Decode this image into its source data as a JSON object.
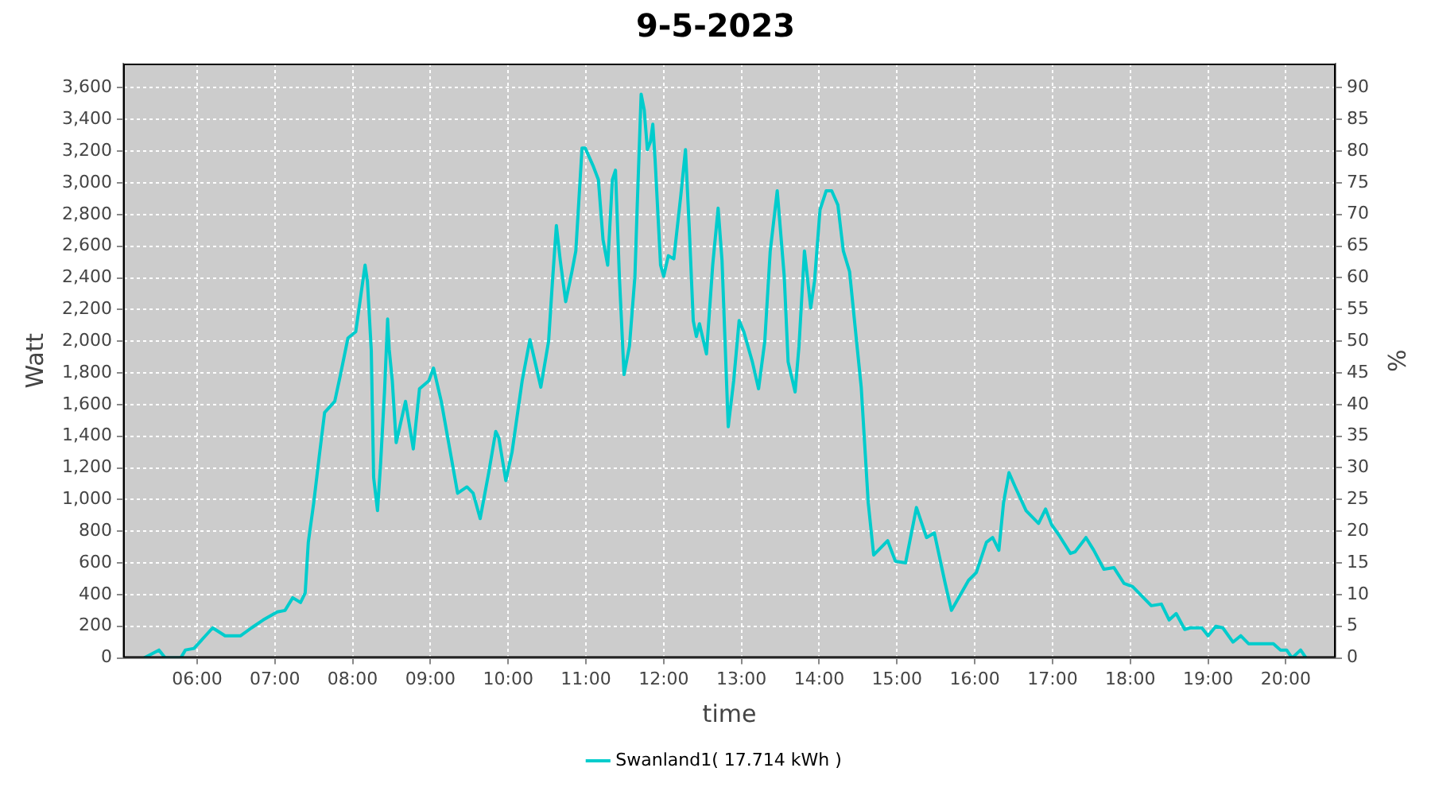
{
  "chart_data": {
    "type": "line",
    "title": "9-5-2023",
    "xlabel": "time",
    "ylabel": "Watt",
    "y2label": "%",
    "series": [
      {
        "name": "Swanland1( 17.714 kWh )",
        "color": "#00cccc",
        "x": [
          5.32,
          5.51,
          5.59,
          5.79,
          5.85,
          5.96,
          6.2,
          6.36,
          6.56,
          6.7,
          6.85,
          7.03,
          7.13,
          7.23,
          7.33,
          7.39,
          7.43,
          7.5,
          7.57,
          7.64,
          7.77,
          7.84,
          7.94,
          8.04,
          8.16,
          8.19,
          8.24,
          8.27,
          8.32,
          8.36,
          8.41,
          8.45,
          8.47,
          8.51,
          8.56,
          8.68,
          8.78,
          8.86,
          8.98,
          9.04,
          9.14,
          9.35,
          9.47,
          9.55,
          9.64,
          9.75,
          9.84,
          9.88,
          9.97,
          10.05,
          10.18,
          10.28,
          10.42,
          10.52,
          10.57,
          10.62,
          10.67,
          10.74,
          10.82,
          10.87,
          10.95,
          10.99,
          11.09,
          11.16,
          11.22,
          11.28,
          11.34,
          11.38,
          11.43,
          11.49,
          11.56,
          11.63,
          11.66,
          11.71,
          11.75,
          11.79,
          11.83,
          11.86,
          11.89,
          11.96,
          12.0,
          12.06,
          12.13,
          12.22,
          12.28,
          12.33,
          12.38,
          12.42,
          12.46,
          12.55,
          12.63,
          12.7,
          12.75,
          12.83,
          12.9,
          12.97,
          13.03,
          13.14,
          13.22,
          13.3,
          13.37,
          13.46,
          13.55,
          13.6,
          13.69,
          13.74,
          13.81,
          13.84,
          13.89,
          13.94,
          14.01,
          14.09,
          14.16,
          14.24,
          14.31,
          14.39,
          14.48,
          14.54,
          14.63,
          14.7,
          14.88,
          14.98,
          15.11,
          15.25,
          15.38,
          15.48,
          15.62,
          15.7,
          15.92,
          16.02,
          16.15,
          16.23,
          16.31,
          16.37,
          16.44,
          16.52,
          16.66,
          16.82,
          16.91,
          16.99,
          17.09,
          17.23,
          17.29,
          17.43,
          17.53,
          17.66,
          17.79,
          17.92,
          18.03,
          18.27,
          18.4,
          18.5,
          18.59,
          18.7,
          18.77,
          18.92,
          19.0,
          19.1,
          19.19,
          19.32,
          19.42,
          19.52,
          19.84,
          19.93,
          20.01,
          20.08,
          20.19,
          20.26
        ],
        "values": [
          0,
          50,
          0,
          0,
          50,
          60,
          190,
          140,
          140,
          190,
          240,
          290,
          300,
          380,
          350,
          410,
          730,
          980,
          1270,
          1550,
          1620,
          1780,
          2020,
          2060,
          2480,
          2380,
          1940,
          1140,
          930,
          1230,
          1680,
          2140,
          1950,
          1750,
          1360,
          1620,
          1320,
          1700,
          1750,
          1830,
          1620,
          1040,
          1080,
          1040,
          880,
          1170,
          1430,
          1390,
          1120,
          1300,
          1750,
          2010,
          1710,
          2000,
          2380,
          2730,
          2510,
          2250,
          2440,
          2570,
          3220,
          3220,
          3110,
          3020,
          2640,
          2480,
          3020,
          3080,
          2410,
          1790,
          1970,
          2410,
          2860,
          3560,
          3460,
          3210,
          3260,
          3370,
          3140,
          2480,
          2410,
          2540,
          2520,
          2920,
          3210,
          2700,
          2130,
          2030,
          2110,
          1920,
          2480,
          2840,
          2510,
          1460,
          1750,
          2130,
          2060,
          1870,
          1700,
          2000,
          2570,
          2950,
          2410,
          1870,
          1680,
          1970,
          2570,
          2440,
          2210,
          2380,
          2830,
          2950,
          2950,
          2860,
          2570,
          2440,
          2000,
          1710,
          980,
          650,
          740,
          610,
          600,
          950,
          760,
          790,
          470,
          300,
          490,
          540,
          730,
          760,
          680,
          980,
          1170,
          1080,
          930,
          850,
          940,
          840,
          770,
          660,
          670,
          760,
          680,
          560,
          570,
          470,
          450,
          330,
          340,
          240,
          280,
          180,
          190,
          190,
          140,
          200,
          190,
          100,
          140,
          90,
          90,
          50,
          50,
          0,
          50,
          0
        ]
      }
    ],
    "xlim": [
      5.05,
      20.64
    ],
    "xticks": [
      {
        "value": 6,
        "label": "06:00"
      },
      {
        "value": 7,
        "label": "07:00"
      },
      {
        "value": 8,
        "label": "08:00"
      },
      {
        "value": 9,
        "label": "09:00"
      },
      {
        "value": 10,
        "label": "10:00"
      },
      {
        "value": 11,
        "label": "11:00"
      },
      {
        "value": 12,
        "label": "12:00"
      },
      {
        "value": 13,
        "label": "13:00"
      },
      {
        "value": 14,
        "label": "14:00"
      },
      {
        "value": 15,
        "label": "15:00"
      },
      {
        "value": 16,
        "label": "16:00"
      },
      {
        "value": 17,
        "label": "17:00"
      },
      {
        "value": 18,
        "label": "18:00"
      },
      {
        "value": 19,
        "label": "19:00"
      },
      {
        "value": 20,
        "label": "20:00"
      }
    ],
    "ylim": [
      0,
      3753
    ],
    "yticks": [
      0,
      200,
      400,
      600,
      800,
      {
        "value": 1000,
        "label": "1,000"
      },
      {
        "value": 1200,
        "label": "1,200"
      },
      {
        "value": 1400,
        "label": "1,400"
      },
      {
        "value": 1600,
        "label": "1,600"
      },
      {
        "value": 1800,
        "label": "1,800"
      },
      {
        "value": 2000,
        "label": "2,000"
      },
      {
        "value": 2200,
        "label": "2,200"
      },
      {
        "value": 2400,
        "label": "2,400"
      },
      {
        "value": 2600,
        "label": "2,600"
      },
      {
        "value": 2800,
        "label": "2,800"
      },
      {
        "value": 3000,
        "label": "3,000"
      },
      {
        "value": 3200,
        "label": "3,200"
      },
      {
        "value": 3400,
        "label": "3,400"
      },
      {
        "value": 3600,
        "label": "3,600"
      }
    ],
    "y2lim": [
      0,
      93.8
    ],
    "y2ticks": [
      0,
      5,
      10,
      15,
      20,
      25,
      30,
      35,
      40,
      45,
      50,
      55,
      60,
      65,
      70,
      75,
      80,
      85,
      90
    ],
    "grid": true,
    "legend": "bottom",
    "marker": "none",
    "line_style": "solid"
  }
}
